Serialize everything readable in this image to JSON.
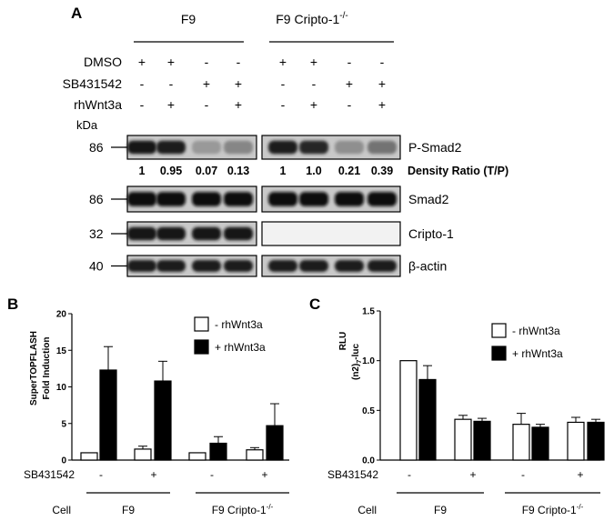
{
  "panel_a": {
    "label": "A",
    "group_f9": "F9",
    "group_ko": "F9 Cripto-1",
    "group_ko_sup": "-/-",
    "treatments": [
      {
        "name": "DMSO",
        "marks": [
          "+",
          "+",
          "-",
          "-",
          "+",
          "+",
          "-",
          "-"
        ]
      },
      {
        "name": "SB431542",
        "marks": [
          "-",
          "-",
          "+",
          "+",
          "-",
          "-",
          "+",
          "+"
        ]
      },
      {
        "name": "rhWnt3a",
        "marks": [
          "-",
          "+",
          "-",
          "+",
          "-",
          "+",
          "-",
          "+"
        ]
      }
    ],
    "kda_label": "kDa",
    "density_ratios": [
      "1",
      "0.95",
      "0.07",
      "0.13",
      "1",
      "1.0",
      "0.21",
      "0.39"
    ],
    "density_label": "Density Ratio (T/P)",
    "blots": [
      {
        "name": "P-Smad2",
        "kda": "86",
        "intensity": [
          0.95,
          0.9,
          0.25,
          0.35,
          0.9,
          0.85,
          0.3,
          0.45
        ]
      },
      {
        "name": "Smad2",
        "kda": "86",
        "intensity": [
          1,
          1,
          1,
          1,
          1,
          1,
          1,
          1
        ]
      },
      {
        "name": "Cripto-1",
        "kda": "32",
        "intensity": [
          0.95,
          0.95,
          0.95,
          0.95,
          0,
          0,
          0,
          0
        ]
      },
      {
        "name": "β-actin",
        "kda": "40",
        "intensity": [
          0.9,
          0.9,
          0.9,
          0.9,
          0.9,
          0.9,
          0.9,
          0.9
        ]
      }
    ]
  },
  "chart_data": [
    {
      "type": "bar",
      "label": "B",
      "ylabel_line1": "SuperTOPFLASH",
      "ylabel_line2": "Fold Induction",
      "ylim": [
        0,
        20
      ],
      "yticks": [
        "0",
        "5",
        "10",
        "15",
        "20"
      ],
      "series": [
        {
          "name": "- rhWnt3a",
          "color": "#ffffff",
          "values": [
            1.0,
            1.5,
            1.0,
            1.4
          ],
          "errors": [
            0,
            0.4,
            0,
            0.3
          ]
        },
        {
          "name": "+ rhWnt3a",
          "color": "#000000",
          "values": [
            12.3,
            10.8,
            2.3,
            4.7
          ],
          "errors": [
            3.2,
            2.7,
            0.9,
            3.0
          ]
        }
      ],
      "sb_label": "SB431542",
      "sb_marks": [
        "-",
        "+",
        "-",
        "+"
      ],
      "cell_label": "Cell",
      "cell_groups": [
        "F9",
        "F9 Cripto-1"
      ],
      "cell_sup": "-/-",
      "legend": "top-right"
    },
    {
      "type": "bar",
      "label": "C",
      "ylabel_line1": "RLU",
      "ylabel_line2": "(n2)",
      "ylabel_sub": "7",
      "ylabel_tail": "-luc",
      "ylim": [
        0,
        1.5
      ],
      "yticks": [
        "0.0",
        "0.5",
        "1.0",
        "1.5"
      ],
      "series": [
        {
          "name": "- rhWnt3a",
          "color": "#ffffff",
          "values": [
            1.0,
            0.41,
            0.36,
            0.38
          ],
          "errors": [
            0,
            0.04,
            0.11,
            0.05
          ]
        },
        {
          "name": "+ rhWnt3a",
          "color": "#000000",
          "values": [
            0.81,
            0.39,
            0.33,
            0.38
          ],
          "errors": [
            0.14,
            0.03,
            0.03,
            0.03
          ]
        }
      ],
      "sb_label": "SB431542",
      "sb_marks": [
        "-",
        "+",
        "-",
        "+"
      ],
      "cell_label": "Cell",
      "cell_groups": [
        "F9",
        "F9 Cripto-1"
      ],
      "cell_sup": "-/-",
      "legend": "top-right"
    }
  ]
}
